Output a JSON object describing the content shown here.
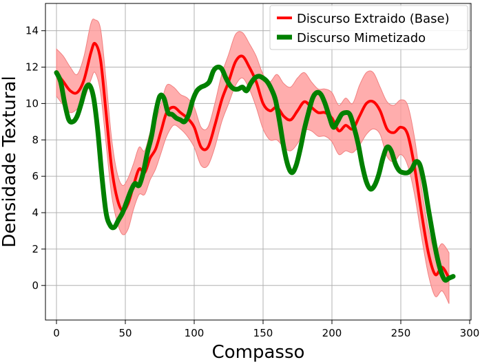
{
  "chart_data": {
    "type": "line",
    "xlabel": "Compasso",
    "ylabel": "Densidade Textural",
    "xlim": [
      -8,
      301
    ],
    "ylim": [
      -1.9,
      15.5
    ],
    "xticks": [
      0,
      50,
      100,
      150,
      200,
      250,
      300
    ],
    "yticks": [
      0,
      2,
      4,
      6,
      8,
      10,
      12,
      14
    ],
    "grid": true,
    "legend_position": "top-right",
    "series": [
      {
        "name": "Discurso Extraido (Base)",
        "color": "#ff0000",
        "band_color": "#ff9999",
        "x": [
          0,
          5,
          10,
          15,
          20,
          25,
          28,
          32,
          36,
          40,
          44,
          48,
          52,
          56,
          60,
          64,
          68,
          72,
          76,
          80,
          85,
          90,
          95,
          100,
          105,
          110,
          115,
          120,
          125,
          130,
          135,
          140,
          145,
          150,
          155,
          160,
          165,
          170,
          175,
          180,
          185,
          190,
          195,
          200,
          205,
          210,
          215,
          220,
          225,
          230,
          235,
          240,
          245,
          250,
          255,
          260,
          265,
          270,
          275,
          280,
          285
        ],
        "y": [
          11.7,
          11.2,
          10.7,
          10.6,
          11.3,
          12.8,
          13.3,
          12.4,
          9.5,
          6.5,
          4.8,
          4.1,
          4.5,
          5.5,
          6.4,
          6.2,
          7.0,
          7.5,
          8.5,
          9.5,
          9.8,
          9.5,
          9.2,
          8.7,
          7.6,
          7.6,
          8.8,
          10.2,
          11.2,
          12.3,
          12.6,
          12.0,
          11.2,
          10.0,
          9.6,
          9.8,
          9.3,
          9.1,
          9.6,
          10.1,
          9.8,
          9.5,
          9.5,
          9.2,
          8.5,
          8.8,
          8.6,
          9.3,
          10.0,
          10.1,
          9.6,
          8.6,
          8.4,
          8.7,
          8.3,
          6.5,
          4.0,
          1.8,
          0.6,
          1.0,
          0.4
        ],
        "lower": [
          10.4,
          9.9,
          9.5,
          9.7,
          10.2,
          11.3,
          11.7,
          10.6,
          7.8,
          5.0,
          3.5,
          2.8,
          3.1,
          4.2,
          5.0,
          5.0,
          5.8,
          6.4,
          7.3,
          8.2,
          8.8,
          8.6,
          8.2,
          7.6,
          6.6,
          6.6,
          7.6,
          9.0,
          10.0,
          11.0,
          11.4,
          10.8,
          9.8,
          8.6,
          8.0,
          8.0,
          7.6,
          7.4,
          7.8,
          8.5,
          8.5,
          8.2,
          8.2,
          7.9,
          7.2,
          7.4,
          7.3,
          7.7,
          8.3,
          8.6,
          8.3,
          7.1,
          6.8,
          7.2,
          6.6,
          5.0,
          2.7,
          0.6,
          -0.6,
          -0.3,
          -1.0
        ],
        "upper": [
          13.0,
          12.6,
          12.0,
          11.6,
          12.6,
          14.4,
          14.6,
          14.1,
          11.3,
          8.1,
          6.2,
          5.5,
          5.9,
          6.7,
          7.6,
          7.4,
          8.4,
          9.0,
          10.0,
          11.0,
          10.9,
          10.5,
          10.3,
          9.8,
          8.7,
          8.7,
          10.0,
          11.6,
          12.7,
          13.8,
          13.9,
          13.3,
          12.6,
          11.6,
          11.2,
          11.6,
          11.1,
          10.9,
          11.4,
          11.7,
          11.2,
          10.8,
          10.8,
          10.6,
          9.9,
          10.3,
          10.0,
          11.0,
          11.7,
          11.7,
          10.9,
          10.1,
          9.9,
          10.2,
          9.9,
          8.1,
          5.4,
          3.1,
          1.9,
          2.3,
          1.8
        ]
      },
      {
        "name": "Discurso Mimetizado",
        "color": "#008000",
        "x": [
          0,
          3,
          6,
          9,
          12,
          15,
          18,
          21,
          24,
          27,
          30,
          33,
          36,
          39,
          42,
          45,
          48,
          51,
          54,
          57,
          60,
          63,
          66,
          69,
          72,
          75,
          78,
          81,
          84,
          87,
          90,
          93,
          96,
          99,
          102,
          105,
          108,
          111,
          114,
          117,
          120,
          123,
          126,
          129,
          132,
          135,
          138,
          141,
          144,
          147,
          150,
          153,
          156,
          159,
          162,
          165,
          168,
          171,
          174,
          177,
          180,
          183,
          186,
          189,
          192,
          195,
          198,
          201,
          204,
          207,
          210,
          213,
          216,
          219,
          222,
          225,
          228,
          231,
          234,
          237,
          240,
          243,
          246,
          249,
          252,
          255,
          258,
          261,
          264,
          267,
          270,
          273,
          276,
          279,
          282,
          285,
          288
        ],
        "y": [
          11.7,
          11.2,
          10.0,
          9.1,
          9.0,
          9.3,
          10.0,
          10.8,
          11.0,
          10.3,
          8.5,
          6.0,
          4.0,
          3.3,
          3.2,
          3.6,
          4.0,
          4.6,
          5.2,
          5.6,
          5.5,
          6.2,
          7.3,
          8.2,
          9.5,
          10.4,
          10.3,
          9.5,
          9.4,
          9.2,
          9.1,
          9.0,
          9.4,
          10.2,
          10.7,
          10.9,
          11.0,
          11.2,
          11.8,
          12.0,
          11.9,
          11.4,
          11.0,
          10.8,
          10.8,
          10.9,
          10.7,
          11.1,
          11.4,
          11.5,
          11.4,
          11.2,
          10.8,
          10.2,
          9.0,
          7.6,
          6.6,
          6.2,
          6.6,
          7.5,
          8.6,
          9.5,
          10.3,
          10.6,
          10.5,
          10.0,
          9.3,
          8.7,
          9.0,
          9.4,
          9.5,
          9.4,
          8.7,
          7.8,
          6.6,
          5.7,
          5.3,
          5.5,
          6.1,
          7.0,
          7.6,
          7.4,
          6.7,
          6.3,
          6.2,
          6.2,
          6.4,
          6.8,
          6.6,
          5.6,
          4.2,
          2.9,
          1.7,
          0.8,
          0.3,
          0.4,
          0.5
        ]
      }
    ]
  },
  "colors": {
    "base_line": "#ff0000",
    "base_band": "#ff9999",
    "mimic_line": "#008000",
    "grid": "#b0b0b0",
    "axes": "#000000"
  }
}
